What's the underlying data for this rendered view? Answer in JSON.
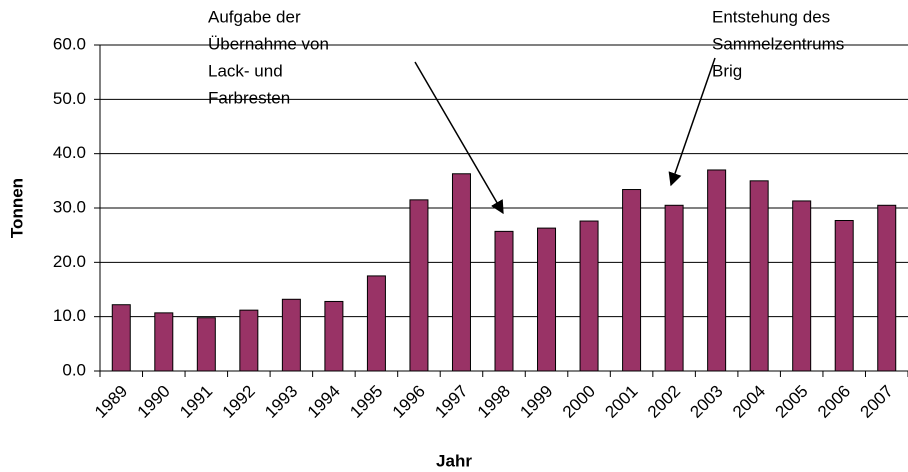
{
  "chart_data": {
    "type": "bar",
    "x_label": "Jahr",
    "y_label": "Tonnen",
    "categories": [
      "1989",
      "1990",
      "1991",
      "1992",
      "1993",
      "1994",
      "1995",
      "1996",
      "1997",
      "1998",
      "1999",
      "2000",
      "2001",
      "2002",
      "2003",
      "2004",
      "2005",
      "2006",
      "2007"
    ],
    "values": [
      12.2,
      10.7,
      9.8,
      11.2,
      13.2,
      12.8,
      17.5,
      31.5,
      36.3,
      25.7,
      26.3,
      27.6,
      33.4,
      30.5,
      37.0,
      35.0,
      31.3,
      27.7,
      30.5
    ],
    "color": "#993366",
    "ylim": [
      0,
      60
    ],
    "yticks": [
      {
        "value": 0,
        "label": "0.0"
      },
      {
        "value": 10,
        "label": "10.0"
      },
      {
        "value": 20,
        "label": "20.0"
      },
      {
        "value": 30,
        "label": "30.0"
      },
      {
        "value": 40,
        "label": "40.0"
      },
      {
        "value": 50,
        "label": "50.0"
      },
      {
        "value": 60,
        "label": "60.0"
      }
    ],
    "grid": true,
    "annotations": [
      {
        "lines": [
          "Aufgabe der",
          "Übernahme von",
          "Lack- und",
          "Farbresten"
        ]
      },
      {
        "lines": [
          "Entstehung des",
          "Sammelzentrums",
          "Brig"
        ]
      }
    ]
  }
}
